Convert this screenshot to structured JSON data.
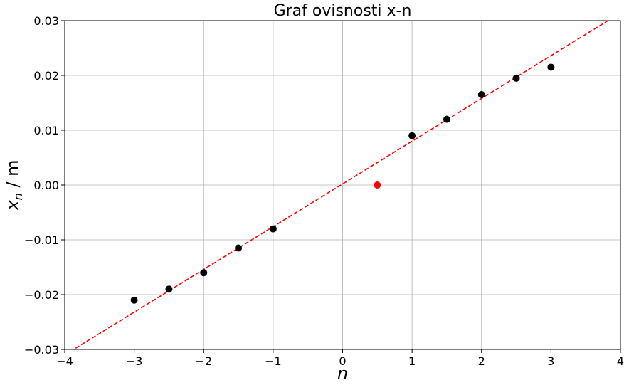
{
  "chart_data": {
    "type": "scatter",
    "title": "Graf ovisnosti x-n",
    "xlabel": "n",
    "ylabel": {
      "base": "x",
      "sub": "n",
      "rest": " / m"
    },
    "xlim": [
      -4,
      4
    ],
    "ylim": [
      -0.03,
      0.03
    ],
    "xticks": [
      -4,
      -3,
      -2,
      -1,
      0,
      1,
      2,
      3,
      4
    ],
    "xtick_labels": [
      "−4",
      "−3",
      "−2",
      "−1",
      "0",
      "1",
      "2",
      "3",
      "4"
    ],
    "yticks": [
      -0.03,
      -0.02,
      -0.01,
      0.0,
      0.01,
      0.02,
      0.03
    ],
    "ytick_labels": [
      "−0.03",
      "−0.02",
      "−0.01",
      "0.00",
      "0.01",
      "0.02",
      "0.03"
    ],
    "grid": true,
    "series": [
      {
        "color": "#000000",
        "x": [
          -3,
          -2.5,
          -2,
          -1.5,
          -1,
          1,
          1.5,
          2,
          2.5,
          3
        ],
        "y": [
          -0.021,
          -0.019,
          -0.016,
          -0.0115,
          -0.008,
          0.009,
          0.012,
          0.0165,
          0.0195,
          0.0215
        ]
      },
      {
        "color": "#ff0000",
        "x": [
          0.5
        ],
        "y": [
          0.0
        ]
      }
    ],
    "fit_line": {
      "color": "#ff0000",
      "style": "dashed",
      "slope": 0.0078,
      "intercept": 0.0002
    }
  }
}
